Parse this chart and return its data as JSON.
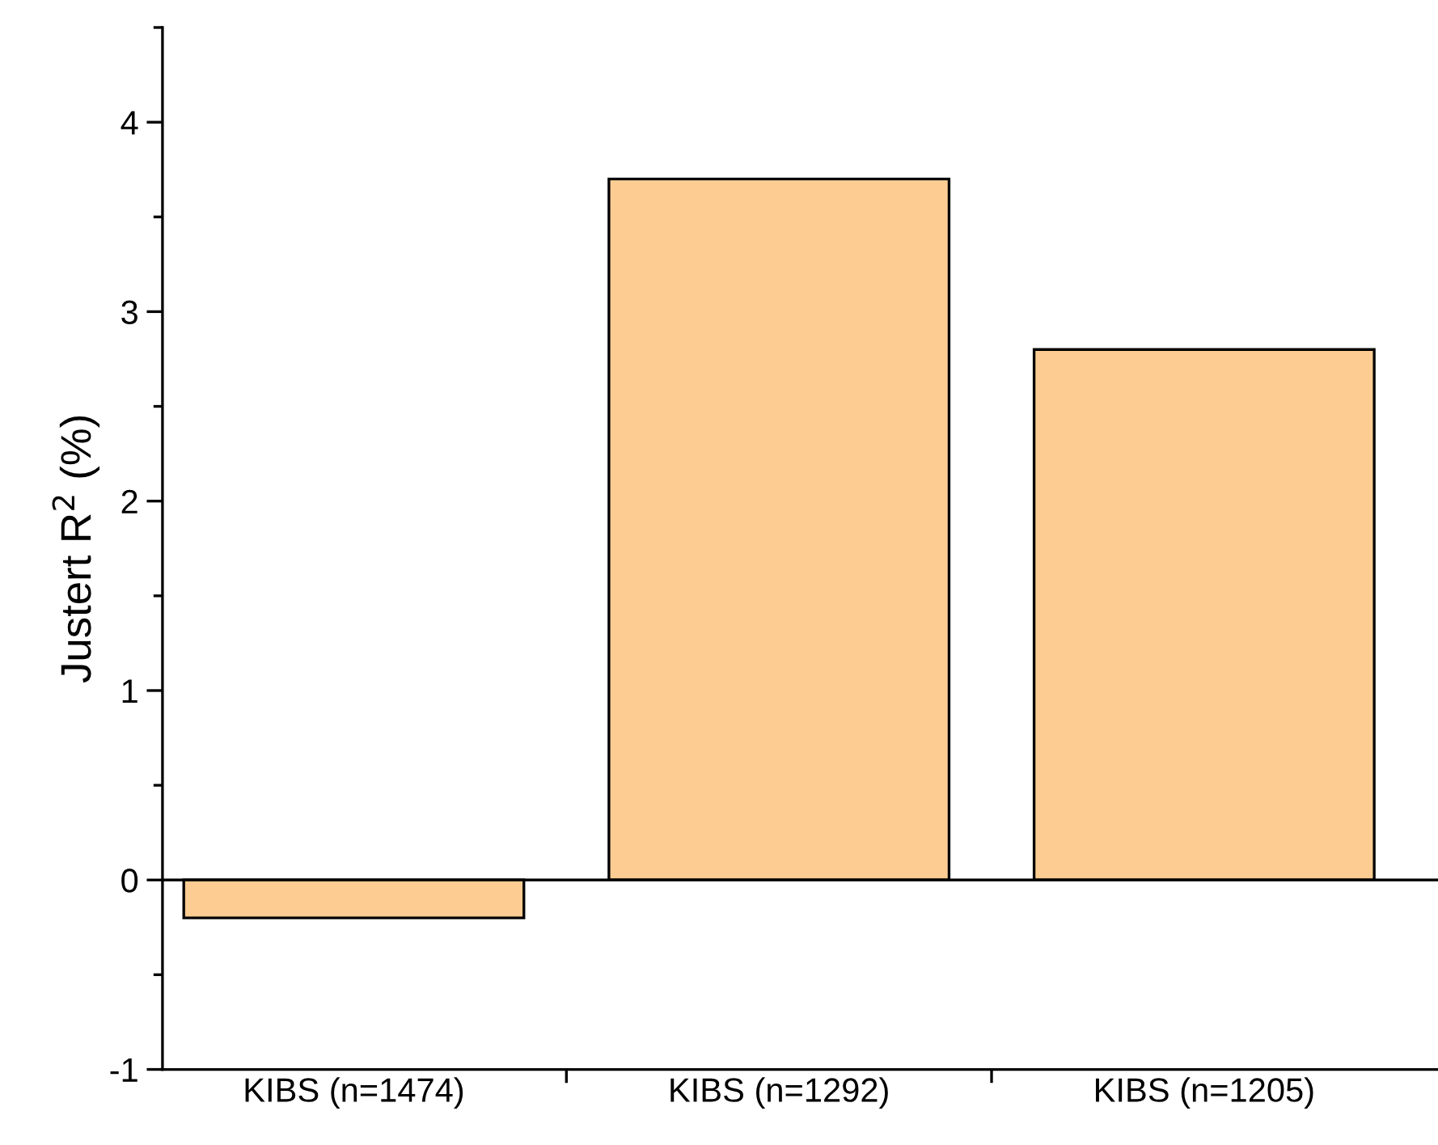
{
  "chart_data": {
    "type": "bar",
    "ylabel": "Justert R$^{2}$ (%)",
    "categories": [
      "KIBS (n=1474)",
      "KIBS (n=1292)",
      "KIBS (n=1205)"
    ],
    "values": [
      -0.2,
      3.7,
      2.8
    ],
    "color": "#fdcc92",
    "ylim": [
      -1,
      4.5
    ],
    "yticks": [
      -1,
      0,
      1,
      2,
      3,
      4
    ],
    "grid": false,
    "ref_lines": [
      {
        "axis": "y",
        "value": 0,
        "color": "#000000",
        "line_style": "solid"
      }
    ]
  }
}
